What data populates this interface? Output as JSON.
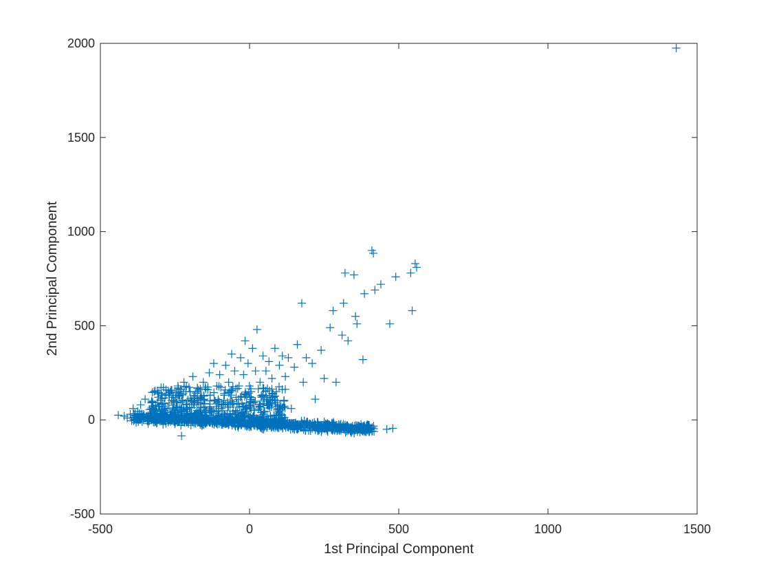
{
  "chart_data": {
    "type": "scatter",
    "xlabel": "1st Principal Component",
    "ylabel": "2nd Principal Component",
    "xlim": [
      -500,
      1500
    ],
    "ylim": [
      -500,
      2000
    ],
    "xticks": [
      -500,
      0,
      500,
      1000,
      1500
    ],
    "yticks": [
      -500,
      0,
      500,
      1000,
      1500,
      2000
    ],
    "marker": "+",
    "color": "#0072BD",
    "grid": false,
    "points": [
      [
        -440,
        25
      ],
      [
        -420,
        20
      ],
      [
        -410,
        10
      ],
      [
        -400,
        30
      ],
      [
        -395,
        -5
      ],
      [
        -390,
        60
      ],
      [
        -385,
        15
      ],
      [
        -380,
        -15
      ],
      [
        -375,
        45
      ],
      [
        -370,
        5
      ],
      [
        -365,
        80
      ],
      [
        -360,
        -10
      ],
      [
        -355,
        30
      ],
      [
        -350,
        110
      ],
      [
        -345,
        20
      ],
      [
        -340,
        -20
      ],
      [
        -335,
        55
      ],
      [
        -330,
        0
      ],
      [
        -325,
        95
      ],
      [
        -320,
        150
      ],
      [
        -315,
        35
      ],
      [
        -310,
        -15
      ],
      [
        -305,
        70
      ],
      [
        -300,
        10
      ],
      [
        -295,
        130
      ],
      [
        -290,
        -25
      ],
      [
        -285,
        50
      ],
      [
        -280,
        160
      ],
      [
        -275,
        20
      ],
      [
        -270,
        90
      ],
      [
        -265,
        -10
      ],
      [
        -260,
        40
      ],
      [
        -255,
        120
      ],
      [
        -250,
        0
      ],
      [
        -245,
        70
      ],
      [
        -240,
        180
      ],
      [
        -235,
        25
      ],
      [
        -230,
        -30
      ],
      [
        -228,
        -85
      ],
      [
        -225,
        100
      ],
      [
        -220,
        200
      ],
      [
        -215,
        15
      ],
      [
        -210,
        60
      ],
      [
        -205,
        -20
      ],
      [
        -200,
        150
      ],
      [
        -195,
        35
      ],
      [
        -190,
        230
      ],
      [
        -185,
        80
      ],
      [
        -180,
        -5
      ],
      [
        -175,
        170
      ],
      [
        -170,
        45
      ],
      [
        -165,
        120
      ],
      [
        -160,
        -30
      ],
      [
        -155,
        200
      ],
      [
        -150,
        70
      ],
      [
        -145,
        10
      ],
      [
        -140,
        160
      ],
      [
        -135,
        250
      ],
      [
        -130,
        40
      ],
      [
        -125,
        -15
      ],
      [
        -120,
        300
      ],
      [
        -115,
        100
      ],
      [
        -110,
        180
      ],
      [
        -105,
        20
      ],
      [
        -100,
        240
      ],
      [
        -95,
        60
      ],
      [
        -90,
        -25
      ],
      [
        -85,
        140
      ],
      [
        -80,
        290
      ],
      [
        -75,
        30
      ],
      [
        -70,
        200
      ],
      [
        -65,
        80
      ],
      [
        -60,
        350
      ],
      [
        -55,
        -10
      ],
      [
        -50,
        260
      ],
      [
        -45,
        120
      ],
      [
        -40,
        40
      ],
      [
        -35,
        180
      ],
      [
        -30,
        330
      ],
      [
        -25,
        10
      ],
      [
        -20,
        240
      ],
      [
        -15,
        420
      ],
      [
        -10,
        90
      ],
      [
        -5,
        300
      ],
      [
        0,
        -20
      ],
      [
        5,
        150
      ],
      [
        10,
        380
      ],
      [
        15,
        50
      ],
      [
        20,
        260
      ],
      [
        25,
        480
      ],
      [
        30,
        0
      ],
      [
        35,
        200
      ],
      [
        40,
        120
      ],
      [
        45,
        340
      ],
      [
        50,
        -30
      ],
      [
        55,
        260
      ],
      [
        60,
        80
      ],
      [
        65,
        310
      ],
      [
        70,
        20
      ],
      [
        75,
        220
      ],
      [
        80,
        -40
      ],
      [
        85,
        380
      ],
      [
        90,
        150
      ],
      [
        95,
        60
      ],
      [
        100,
        290
      ],
      [
        105,
        -35
      ],
      [
        110,
        340
      ],
      [
        115,
        100
      ],
      [
        120,
        230
      ],
      [
        125,
        -25
      ],
      [
        130,
        330
      ],
      [
        140,
        60
      ],
      [
        150,
        280
      ],
      [
        160,
        400
      ],
      [
        170,
        -40
      ],
      [
        175,
        620
      ],
      [
        180,
        200
      ],
      [
        190,
        330
      ],
      [
        200,
        -30
      ],
      [
        210,
        300
      ],
      [
        220,
        110
      ],
      [
        230,
        -50
      ],
      [
        240,
        370
      ],
      [
        250,
        220
      ],
      [
        260,
        -45
      ],
      [
        270,
        490
      ],
      [
        280,
        580
      ],
      [
        290,
        200
      ],
      [
        300,
        -55
      ],
      [
        310,
        450
      ],
      [
        315,
        620
      ],
      [
        320,
        780
      ],
      [
        330,
        420
      ],
      [
        340,
        -60
      ],
      [
        350,
        770
      ],
      [
        355,
        550
      ],
      [
        360,
        510
      ],
      [
        370,
        -65
      ],
      [
        380,
        320
      ],
      [
        385,
        670
      ],
      [
        400,
        -60
      ],
      [
        410,
        900
      ],
      [
        415,
        885
      ],
      [
        420,
        690
      ],
      [
        440,
        720
      ],
      [
        460,
        -50
      ],
      [
        470,
        510
      ],
      [
        480,
        -45
      ],
      [
        490,
        760
      ],
      [
        540,
        780
      ],
      [
        545,
        580
      ],
      [
        555,
        830
      ],
      [
        560,
        810
      ],
      [
        1430,
        1975
      ]
    ],
    "dense_band": {
      "x_range": [
        -390,
        420
      ],
      "y_center_start": 15,
      "y_center_end": -50,
      "y_spread": 35,
      "count": 900
    },
    "dense_cloud": {
      "x_range": [
        -330,
        120
      ],
      "y_range": [
        0,
        180
      ],
      "count": 450
    }
  }
}
